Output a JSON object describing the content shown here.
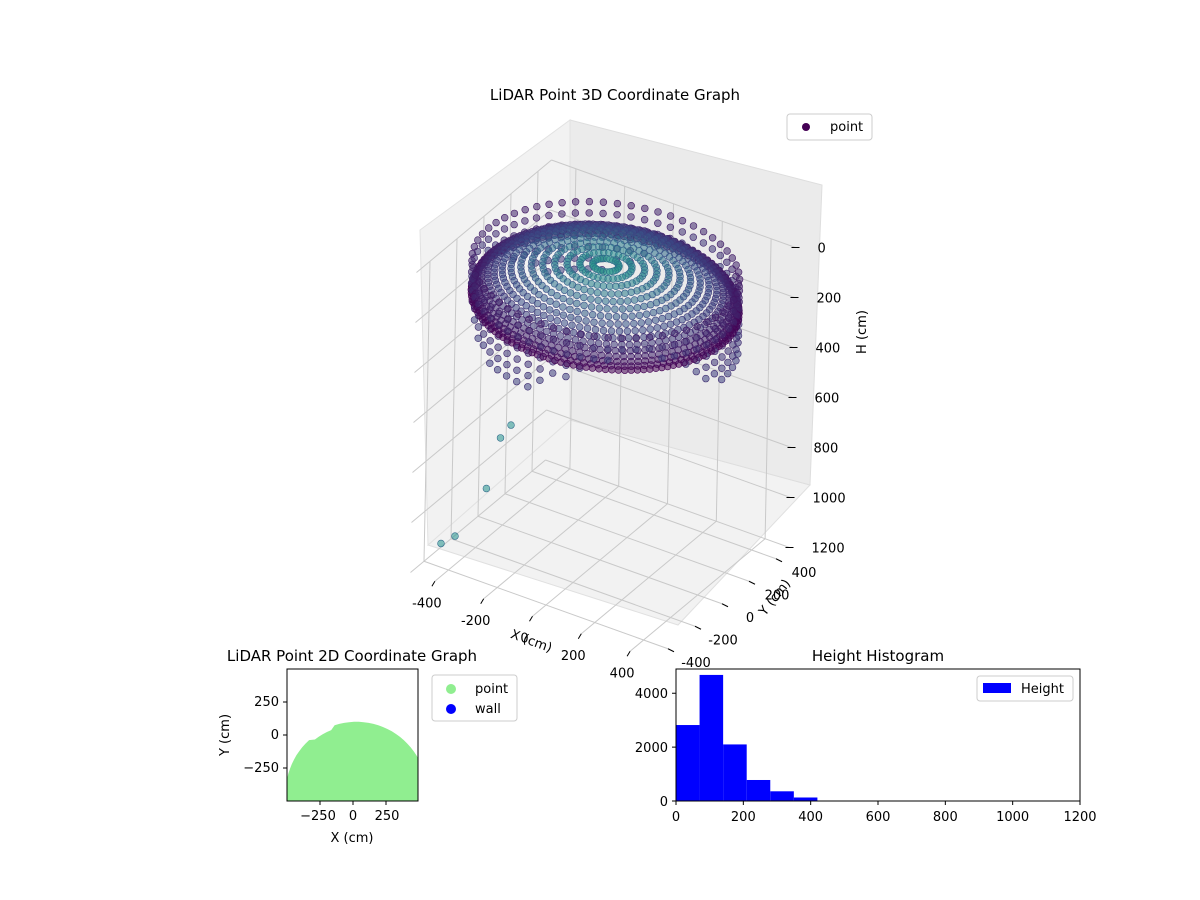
{
  "chart_data": [
    {
      "type": "scatter",
      "projection": "3d",
      "title": "LiDAR Point 3D Coordinate Graph",
      "xlabel": "X (cm)",
      "ylabel": "Y (cm)",
      "zlabel": "H (cm)",
      "xlim": [
        -500,
        500
      ],
      "ylim": [
        -500,
        500
      ],
      "zlim": [
        0,
        1200
      ],
      "z_inverted": true,
      "x_ticks": [
        "-400",
        "-200",
        "0",
        "200",
        "400"
      ],
      "y_ticks": [
        "-400",
        "-200",
        "0",
        "200",
        "400"
      ],
      "z_ticks": [
        "0",
        "200",
        "400",
        "600",
        "800",
        "1000",
        "1200"
      ],
      "colormap": "viridis",
      "legend": {
        "placement": "top-right",
        "entries": [
          {
            "label": "point",
            "color": "#440154"
          }
        ]
      },
      "grid": true,
      "description_data": {
        "shape": "dome of points",
        "radius_cm": 480,
        "height_range_cm": [
          0,
          420
        ],
        "outliers": [
          {
            "x": -470,
            "y": -330,
            "h": 1150
          },
          {
            "x": -430,
            "y": -300,
            "h": 1120
          },
          {
            "x": -360,
            "y": -200,
            "h": 950
          },
          {
            "x": -350,
            "y": -120,
            "h": 780
          },
          {
            "x": -330,
            "y": -80,
            "h": 740
          }
        ]
      }
    },
    {
      "type": "scatter",
      "title": "LiDAR Point 2D Coordinate Graph",
      "xlabel": "X (cm)",
      "ylabel": "Y (cm)",
      "xlim": [
        -500,
        500
      ],
      "ylim": [
        -500,
        500
      ],
      "x_ticks": [
        "−250",
        "0",
        "250"
      ],
      "y_ticks": [
        "250",
        "0",
        "−250"
      ],
      "series": [
        {
          "name": "point",
          "color": "#90ee90"
        },
        {
          "name": "wall",
          "color": "#0000ff"
        }
      ],
      "legend": {
        "placement": "outside-right"
      }
    },
    {
      "type": "bar",
      "subtype": "histogram",
      "title": "Height Histogram",
      "xlim": [
        0,
        1200
      ],
      "ylim": [
        0,
        4900
      ],
      "x_ticks": [
        "0",
        "200",
        "400",
        "600",
        "800",
        "1000",
        "1200"
      ],
      "y_ticks": [
        "0",
        "2000",
        "4000"
      ],
      "bin_edges": [
        0,
        70,
        140,
        210,
        280,
        350,
        420
      ],
      "series": [
        {
          "name": "Height",
          "color": "#0000ff",
          "values": [
            2820,
            4680,
            2100,
            780,
            360,
            130
          ]
        }
      ],
      "legend": {
        "placement": "top-right"
      }
    }
  ]
}
